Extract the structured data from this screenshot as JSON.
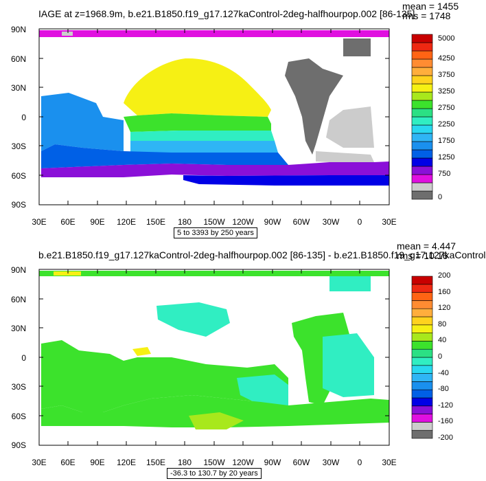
{
  "chart_data": [
    {
      "type": "heatmap",
      "title": "IAGE at z=1968.9m, b.e21.B1850.f19_g17.127kaControl-2deg-halfhourpop.002 [86-135]",
      "stats": [
        "mean = 1455",
        "rms = 1748"
      ],
      "range_text": "5 to 3393 by 250 years",
      "x_ticks": [
        "30E",
        "60E",
        "90E",
        "120E",
        "150E",
        "180",
        "150W",
        "120W",
        "90W",
        "60W",
        "30W",
        "0",
        "30E"
      ],
      "y_ticks": [
        "90N",
        "60N",
        "30N",
        "0",
        "30S",
        "60S",
        "90S"
      ],
      "colorbar": {
        "labels": [
          "0",
          "750",
          "1250",
          "1750",
          "2250",
          "2750",
          "3250",
          "3750",
          "4250",
          "5000"
        ],
        "colors": [
          "#6e6e6e",
          "#cccccc",
          "#e010e0",
          "#8a10d8",
          "#0000e6",
          "#0060e6",
          "#1a90ee",
          "#2fb5f5",
          "#29d8f0",
          "#30eec2",
          "#2be084",
          "#3ce22c",
          "#a8e81c",
          "#f6f014",
          "#ffd21e",
          "#ffae3c",
          "#ff8c32",
          "#ff6414",
          "#ee2812",
          "#c80000"
        ]
      }
    },
    {
      "type": "heatmap",
      "title": "b.e21.B1850.f19_g17.127kaControl-2deg-halfhourpop.002 [86-135] - b.e21.B1850.f19_g17.127kaControl",
      "stats": [
        "mean = 4.447",
        "rms = 10.16"
      ],
      "range_text": "-36.3 to 130.7 by 20 years",
      "x_ticks": [
        "30E",
        "60E",
        "90E",
        "120E",
        "150E",
        "180",
        "150W",
        "120W",
        "90W",
        "60W",
        "30W",
        "0",
        "30E"
      ],
      "y_ticks": [
        "90N",
        "60N",
        "30N",
        "0",
        "30S",
        "60S",
        "90S"
      ],
      "colorbar": {
        "labels": [
          "-200",
          "-160",
          "-120",
          "-80",
          "-40",
          "0",
          "40",
          "80",
          "120",
          "160",
          "200"
        ],
        "colors": [
          "#6e6e6e",
          "#cccccc",
          "#e010e0",
          "#8a10d8",
          "#0000e6",
          "#0060e6",
          "#1a90ee",
          "#2fb5f5",
          "#29d8f0",
          "#30eec2",
          "#2be084",
          "#3ce22c",
          "#a8e81c",
          "#f6f014",
          "#ffd21e",
          "#ffae3c",
          "#ff8c32",
          "#ff6414",
          "#ee2812",
          "#c80000"
        ]
      }
    }
  ]
}
